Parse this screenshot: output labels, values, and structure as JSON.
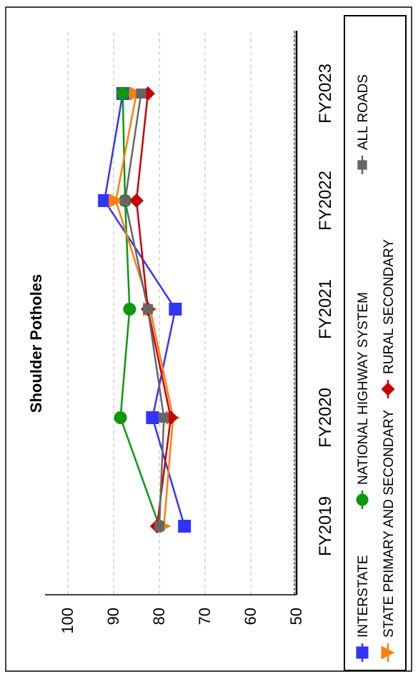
{
  "chart_data": {
    "type": "line",
    "title": "Shoulder Potholes",
    "xlabel": "",
    "ylabel": "",
    "categories": [
      "FY2019",
      "FY2020",
      "FY2021",
      "FY2022",
      "FY2023"
    ],
    "y_ticks": [
      "100",
      "90",
      "80",
      "70",
      "60",
      "50"
    ],
    "ylim": [
      50,
      105
    ],
    "grid": true,
    "legend_position": "bottom",
    "series": [
      {
        "name": "INTERSTATE",
        "marker": "square",
        "color": "#3333ff",
        "values": [
          74.5,
          81.5,
          76.5,
          92,
          88
        ]
      },
      {
        "name": "NATIONAL HIGHWAY SYSTEM",
        "marker": "circle",
        "color": "#0a9a0a",
        "values": [
          80,
          88.5,
          86.5,
          87.5,
          88
        ]
      },
      {
        "name": "STATE PRIMARY AND SECONDARY",
        "marker": "triangle",
        "color": "#ff7f0e",
        "values": [
          79,
          77,
          82,
          89.5,
          85
        ]
      },
      {
        "name": "RURAL SECONDARY",
        "marker": "diamond",
        "color": "#cc0000",
        "values": [
          80.5,
          77.5,
          82.5,
          85,
          82.5
        ]
      },
      {
        "name": "ALL ROADS",
        "marker": "square-small",
        "color": "#666666",
        "values": [
          80,
          79,
          82.5,
          87.5,
          84
        ]
      }
    ]
  }
}
